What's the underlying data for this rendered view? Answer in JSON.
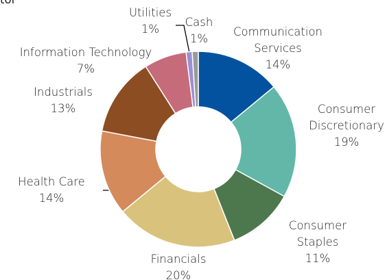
{
  "chart_data": {
    "type": "donut",
    "title": "tor",
    "categories": [
      "Communication Services",
      "Consumer Discretionary",
      "Consumer Staples",
      "Financials",
      "Health Care",
      "Industrials",
      "Information Technology",
      "Utilities",
      "Cash"
    ],
    "values": [
      14,
      19,
      11,
      20,
      14,
      13,
      7,
      1,
      1
    ],
    "value_labels": [
      "14%",
      "19%",
      "11%",
      "20%",
      "14%",
      "13%",
      "7%",
      "1%",
      "1%"
    ],
    "colors": [
      "#0352a0",
      "#62b7a8",
      "#4d784e",
      "#d9c37c",
      "#d48a5b",
      "#8c4d23",
      "#c56b79",
      "#9d8fd3",
      "#9a9a9a"
    ]
  }
}
